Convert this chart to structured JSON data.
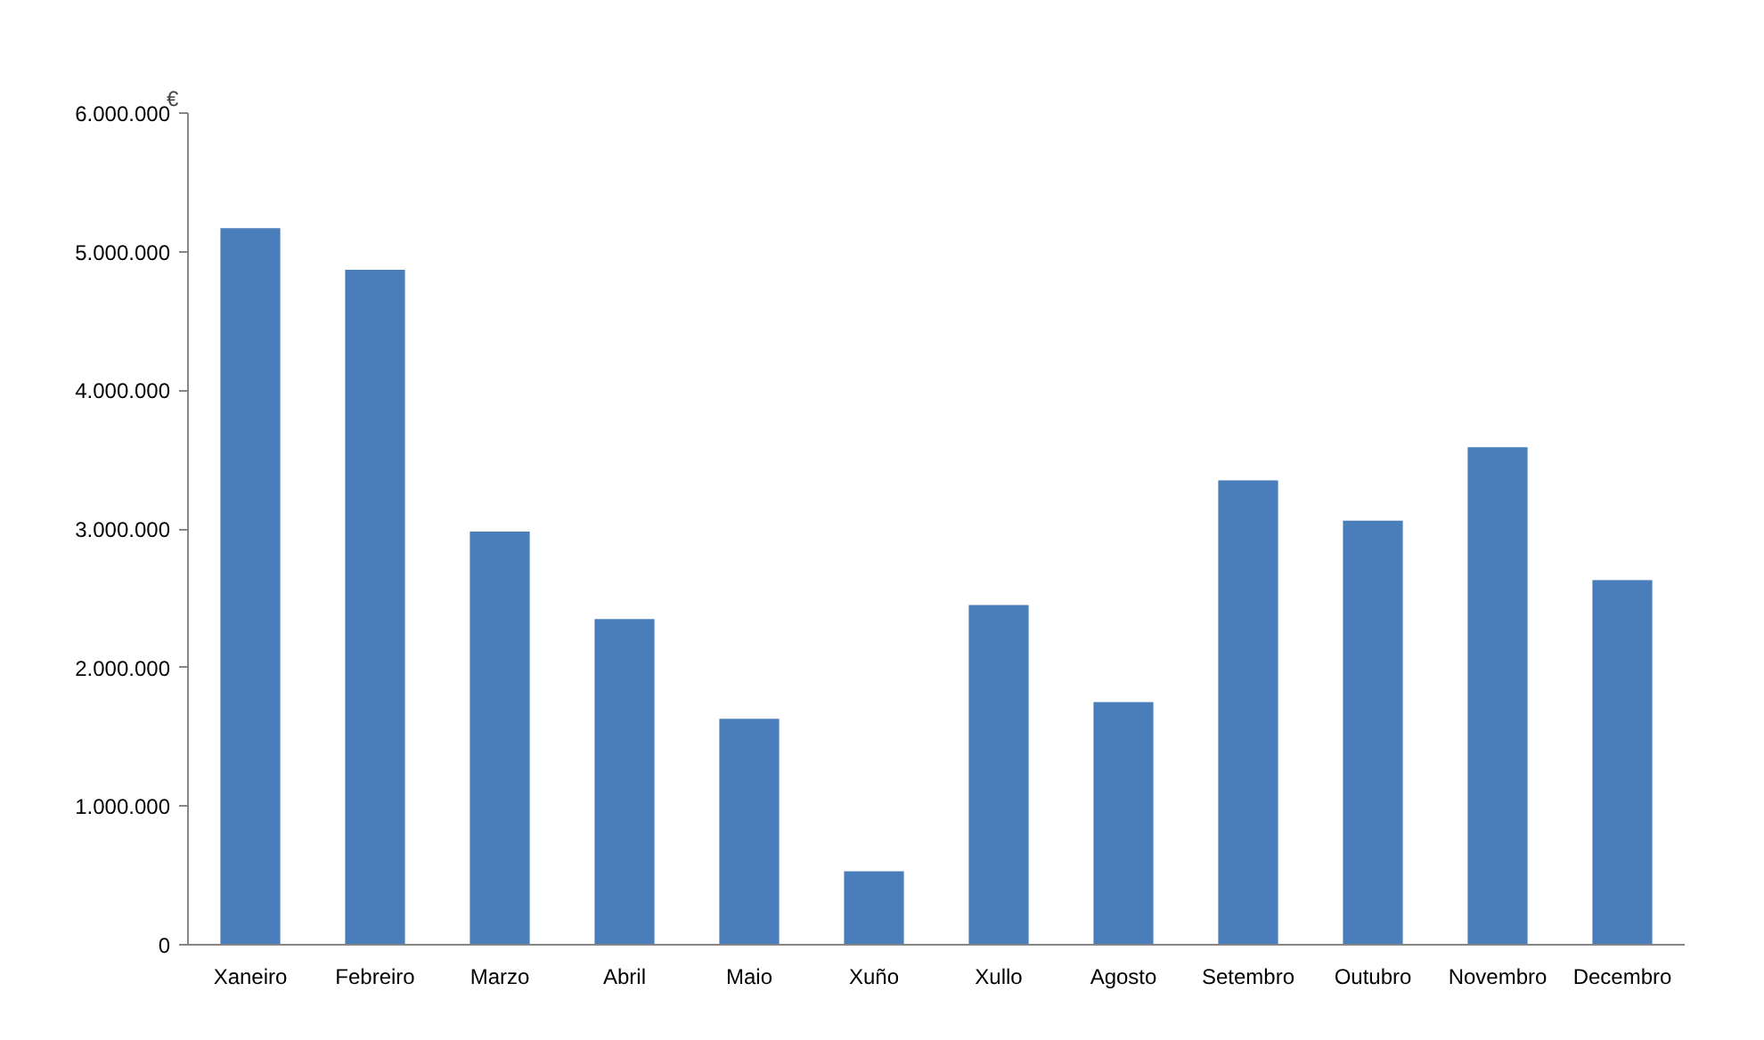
{
  "chart_data": {
    "type": "bar",
    "ylabel": "€",
    "categories": [
      "Xaneiro",
      "Febreiro",
      "Marzo",
      "Abril",
      "Maio",
      "Xuño",
      "Xullo",
      "Agosto",
      "Setembro",
      "Outubro",
      "Novembro",
      "Decembro"
    ],
    "values": [
      5170000,
      4870000,
      2980000,
      2350000,
      1630000,
      530000,
      2450000,
      1750000,
      3350000,
      3060000,
      3590000,
      2630000
    ],
    "color": "#4a7ebb",
    "ylim": [
      0,
      6000000
    ],
    "yticks": [
      {
        "value": 0,
        "label": "0"
      },
      {
        "value": 1000000,
        "label": "1.000.000"
      },
      {
        "value": 2000000,
        "label": "2.000.000"
      },
      {
        "value": 3000000,
        "label": "3.000.000"
      },
      {
        "value": 4000000,
        "label": "4.000.000"
      },
      {
        "value": 5000000,
        "label": "5.000.000"
      },
      {
        "value": 6000000,
        "label": "6.000.000"
      }
    ],
    "grid": false
  }
}
